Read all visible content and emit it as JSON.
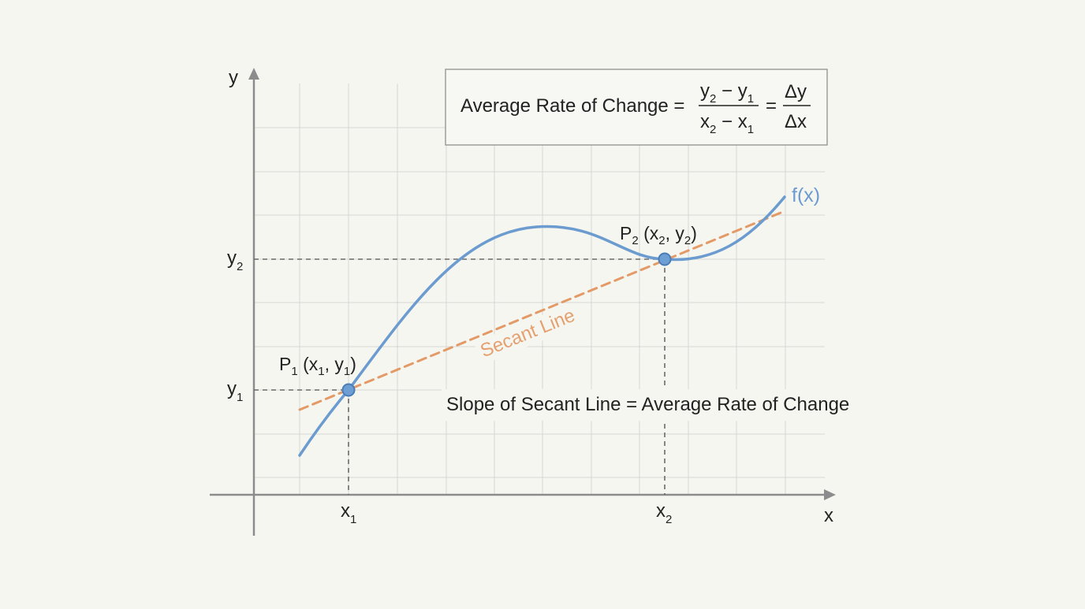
{
  "axes": {
    "x_label": "x",
    "y_label": "y",
    "x1_label": "x",
    "x1_sub": "1",
    "x2_label": "x",
    "x2_sub": "2",
    "y1_label": "y",
    "y1_sub": "1",
    "y2_label": "y",
    "y2_sub": "2"
  },
  "formula": {
    "lead": "Average Rate of Change =",
    "num": {
      "a": "y",
      "a_sub": "2",
      "op": " − ",
      "b": "y",
      "b_sub": "1"
    },
    "den": {
      "a": "x",
      "a_sub": "2",
      "op": " − ",
      "b": "x",
      "b_sub": "1"
    },
    "eq": "=",
    "num2": "Δy",
    "den2": "Δx"
  },
  "curve": {
    "label": "f(x)"
  },
  "secant": {
    "label": "Secant Line"
  },
  "points": {
    "p1": {
      "p": "P",
      "sub": "1",
      "open": " (x",
      "xs": "1",
      "mid": ", y",
      "ys": "1",
      "close": ")"
    },
    "p2": {
      "p": "P",
      "sub": "2",
      "open": " (x",
      "xs": "2",
      "mid": ", y",
      "ys": "2",
      "close": ")"
    }
  },
  "note": "Slope of Secant Line = Average Rate of Change",
  "colors": {
    "curve": "#6b9bcf",
    "secant": "#e39a66",
    "secant_label": "#e5a070",
    "grid": "#d6d6d2",
    "axis": "#8c8c8c",
    "point_fill": "#6e9fd4",
    "point_stroke": "#4a7cb5",
    "guide": "#6a6a6a"
  }
}
